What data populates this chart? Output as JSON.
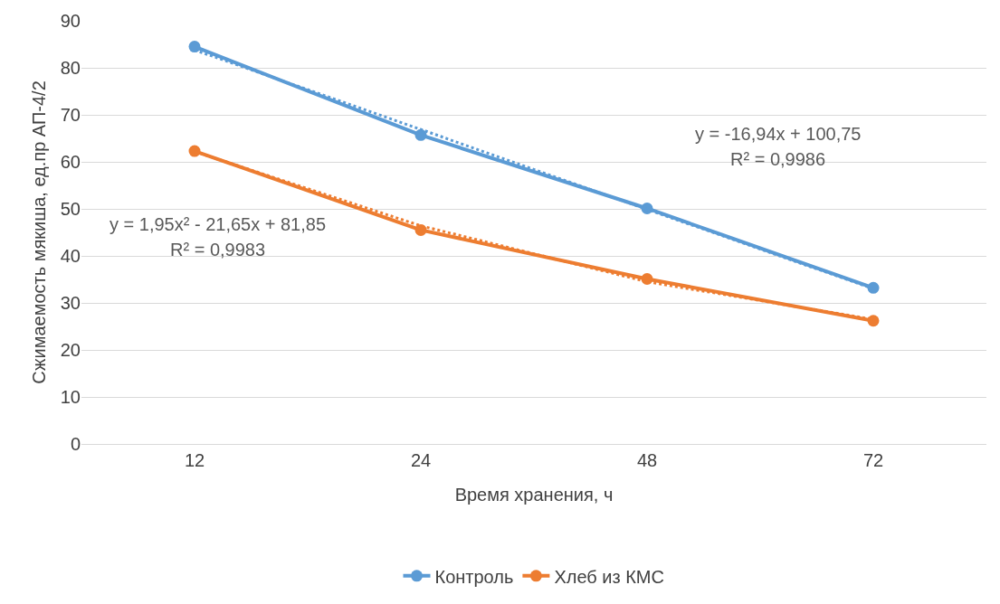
{
  "chart_data": {
    "type": "line",
    "xlabel": "Время хранения, ч",
    "ylabel": "Сжимаемость мякиша, ед.пр АП-4/2",
    "categories": [
      "12",
      "24",
      "48",
      "72"
    ],
    "series": [
      {
        "name": "Контроль",
        "color": "#5b9bd5",
        "values": [
          84.5,
          65.7,
          50.1,
          33.2
        ]
      },
      {
        "name": "Хлеб из КМС",
        "color": "#ed7d31",
        "values": [
          62.3,
          45.5,
          35.1,
          26.2
        ]
      },
      {
        "type": "line",
        "color": "#5b9bd5",
        "line_style": "dotted",
        "marker": "none",
        "values": [
          83.8,
          66.9,
          49.9,
          33.0
        ]
      },
      {
        "type": "line",
        "color": "#ed7d31",
        "line_style": "dotted",
        "marker": "none",
        "values": [
          62.2,
          46.4,
          34.5,
          26.5
        ]
      }
    ],
    "ylim": [
      0,
      90
    ],
    "yticks": [
      0,
      10,
      20,
      30,
      40,
      50,
      60,
      70,
      80,
      90
    ],
    "grid": "y",
    "legend": "bottom",
    "marker": "circle",
    "line_style": "solid",
    "annotations": [
      "y = -16,94x + 100,75",
      "R² = 0,9986",
      "y = 1,95x² - 21,65x + 81,85",
      "R² = 0,9983"
    ]
  }
}
